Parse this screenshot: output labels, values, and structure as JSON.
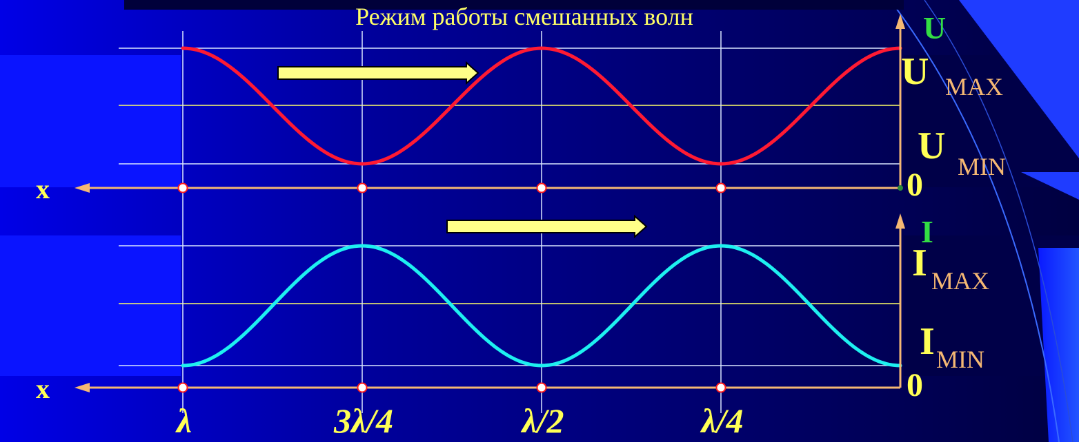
{
  "title": "Режим работы смешанных волн",
  "colors": {
    "title": "#ffff66",
    "axis": "#f5b873",
    "grid_white": "#d9e6ff",
    "grid_yellow": "#ffff66",
    "voltage_curve": "#ff1a33",
    "current_curve": "#1ef0f0",
    "arrow_fill": "#ffff88",
    "axis_name": "#33dd44",
    "label_yellow": "#ffff55",
    "marker_fill": "#ffffff",
    "marker_stroke": "#ff1a1a"
  },
  "voltage_plot": {
    "axis_name": "U",
    "max_label": "U",
    "max_sub": "MAX",
    "min_label": "U",
    "min_sub": "MIN",
    "zero_label": "0",
    "x_label": "x",
    "curve_shape": "cosine",
    "max_level": 1.0,
    "min_level": 0.3,
    "maxima_at": [
      "λ/2",
      "0"
    ],
    "minima_at": [
      "3λ/4",
      "λ/4"
    ]
  },
  "current_plot": {
    "axis_name": "I",
    "max_label": "I",
    "max_sub": "MAX",
    "min_label": "I",
    "min_sub": "MIN",
    "zero_label": "0",
    "x_label": "x",
    "curve_shape": "cosine",
    "max_level": 1.0,
    "min_level": 0.3,
    "maxima_at": [
      "3λ/4",
      "λ/4"
    ],
    "minima_at": [
      "λ",
      "λ/2",
      "0"
    ]
  },
  "x_ticks": [
    "λ",
    "3λ/4",
    "λ/2",
    "λ/4"
  ],
  "x_tick_values": [
    1.0,
    0.75,
    0.5,
    0.25
  ],
  "propagation": "right"
}
